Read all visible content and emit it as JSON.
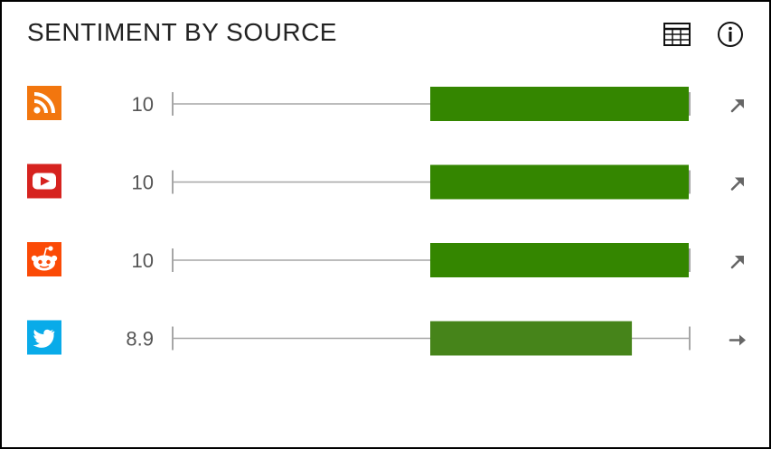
{
  "widget": {
    "title": "SENTIMENT BY SOURCE",
    "table_icon": "table-grid-icon",
    "info_icon": "info-circle-icon"
  },
  "colors": {
    "bar_high": "#348600",
    "bar_mid": "#46841a",
    "axis_line": "#a6a6a6",
    "trend_arrow": "#666666",
    "rss": "#f2760e",
    "youtube": "#d6231f",
    "reddit": "#fb4a06",
    "twitter": "#09abe9"
  },
  "chart_data": {
    "type": "bar",
    "orientation": "horizontal",
    "categories": [
      "rss",
      "youtube",
      "reddit",
      "twitter"
    ],
    "category_icons": [
      "rss-icon",
      "youtube-icon",
      "reddit-icon",
      "twitter-icon"
    ],
    "values": [
      10,
      10,
      10,
      8.9
    ],
    "value_labels": [
      "10",
      "10",
      "10",
      "8.9"
    ],
    "trends": [
      "up",
      "up",
      "up",
      "flat"
    ],
    "xlim": [
      0,
      10
    ],
    "bar_baseline": 5,
    "grid": false,
    "legend": "none"
  }
}
